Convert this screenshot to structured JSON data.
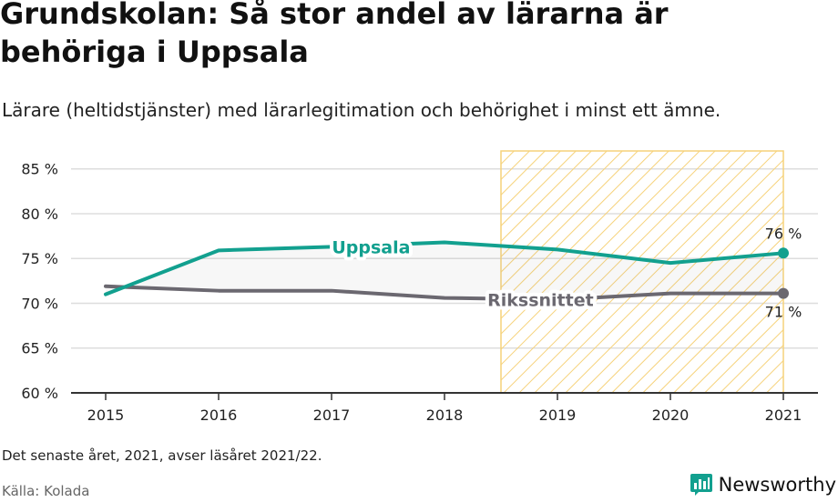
{
  "header": {
    "title": "Grundskolan: Så stor andel av lärarna är behöriga i Uppsala",
    "subtitle": "Lärare (heltidstjänster) med lärarlegitimation och behörighet i minst ett ämne."
  },
  "footer": {
    "note": "Det senaste året, 2021, avser läsåret 2021/22.",
    "source": "Källa: Kolada",
    "brand": "Newsworthy"
  },
  "colors": {
    "uppsala": "#12a08f",
    "riket": "#6b6870",
    "highlight_stroke": "#f6d27a",
    "grid": "#dddddd"
  },
  "chart_data": {
    "type": "line",
    "x": [
      2015,
      2016,
      2017,
      2018,
      2019,
      2020,
      2021
    ],
    "xlabels": [
      "2015",
      "2016",
      "2017",
      "2018",
      "2019",
      "2020",
      "2021"
    ],
    "ylim": [
      60,
      87
    ],
    "yticks": [
      60,
      65,
      70,
      75,
      80,
      85
    ],
    "ytick_labels": [
      "60 %",
      "65 %",
      "70 %",
      "75 %",
      "80 %",
      "85 %"
    ],
    "series": [
      {
        "name": "Uppsala",
        "color": "#12a08f",
        "values": [
          71.0,
          75.9,
          76.3,
          76.8,
          76.0,
          74.5,
          75.6
        ],
        "end_label": "76 %"
      },
      {
        "name": "Rikssnittet",
        "color": "#6b6870",
        "values": [
          71.9,
          71.4,
          71.4,
          70.6,
          70.4,
          71.1,
          71.1
        ],
        "end_label": "71 %"
      }
    ],
    "highlight": {
      "from": 2018.5,
      "to": 2021,
      "pattern": "diagonal-hatch"
    },
    "grid": true
  }
}
